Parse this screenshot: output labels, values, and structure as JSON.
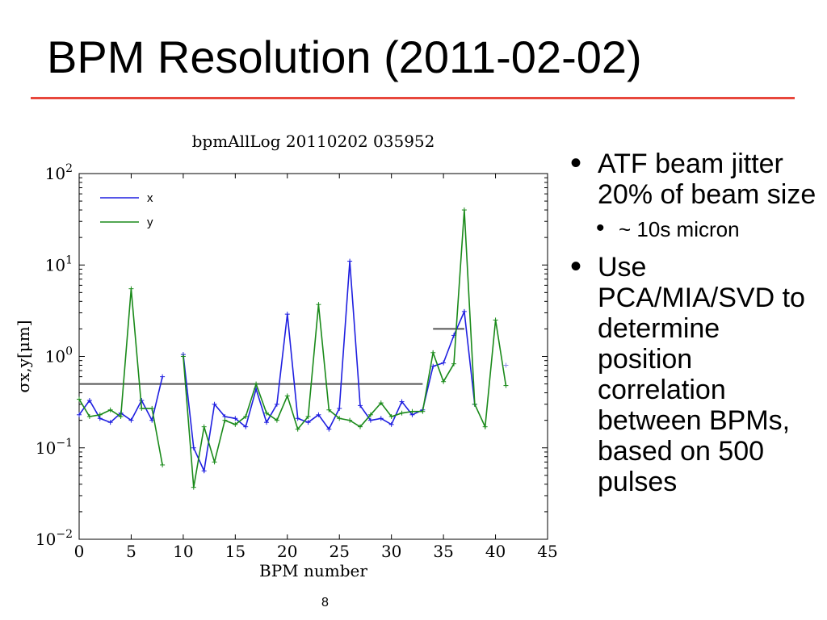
{
  "slide": {
    "title": "BPM Resolution (2011-02-02)",
    "page_number": "8",
    "accent_color": "#e8473c"
  },
  "bullets": [
    {
      "text": "ATF beam jitter 20% of beam size",
      "sub": [
        {
          "text": "~ 10s micron"
        }
      ]
    },
    {
      "text": "Use PCA/MIA/SVD to determine position correlation between BPMs, based on 500 pulses",
      "sub": []
    }
  ],
  "chart_data": {
    "type": "line",
    "title": "bpmAllLog 20110202 035952",
    "xlabel": "BPM number",
    "ylabel": "σx,y[μm]",
    "yscale": "log",
    "xlim": [
      0,
      45
    ],
    "ylim": [
      0.01,
      100
    ],
    "x_ticks": [
      "0",
      "5",
      "10",
      "15",
      "20",
      "25",
      "30",
      "35",
      "40",
      "45"
    ],
    "y_ticks": [
      {
        "base": "10",
        "exp": "−2",
        "value": 0.01
      },
      {
        "base": "10",
        "exp": "−1",
        "value": 0.1
      },
      {
        "base": "10",
        "exp": "0",
        "value": 1
      },
      {
        "base": "10",
        "exp": "1",
        "value": 10
      },
      {
        "base": "10",
        "exp": "2",
        "value": 100
      }
    ],
    "legend_position": "top-left",
    "grid": false,
    "series": [
      {
        "name": "x",
        "color": "#1f1fe0",
        "segments": [
          [
            [
              0,
              0.23
            ],
            [
              1,
              0.33
            ],
            [
              2,
              0.21
            ],
            [
              3,
              0.19
            ],
            [
              4,
              0.24
            ],
            [
              5,
              0.2
            ],
            [
              6,
              0.33
            ],
            [
              7,
              0.2
            ],
            [
              8,
              0.6
            ]
          ],
          [
            [
              10,
              1.05
            ],
            [
              11,
              0.1
            ],
            [
              12,
              0.056
            ],
            [
              13,
              0.3
            ],
            [
              14,
              0.22
            ],
            [
              15,
              0.21
            ],
            [
              16,
              0.17
            ],
            [
              17,
              0.44
            ],
            [
              18,
              0.19
            ],
            [
              19,
              0.3
            ],
            [
              20,
              2.9
            ],
            [
              21,
              0.21
            ],
            [
              22,
              0.19
            ],
            [
              23,
              0.23
            ],
            [
              24,
              0.16
            ],
            [
              25,
              0.27
            ],
            [
              26,
              11
            ],
            [
              27,
              0.29
            ],
            [
              28,
              0.2
            ],
            [
              29,
              0.21
            ],
            [
              30,
              0.18
            ],
            [
              31,
              0.32
            ],
            [
              32,
              0.23
            ],
            [
              33,
              0.26
            ],
            [
              34,
              0.78
            ],
            [
              35,
              0.85
            ],
            [
              36,
              1.7
            ],
            [
              37,
              3.1
            ],
            [
              38,
              0.3
            ]
          ]
        ],
        "markers_only": [
          [
            41,
            0.8
          ]
        ]
      },
      {
        "name": "y",
        "color": "#1a8a1a",
        "segments": [
          [
            [
              0,
              0.34
            ],
            [
              1,
              0.22
            ],
            [
              2,
              0.23
            ],
            [
              3,
              0.26
            ],
            [
              4,
              0.22
            ],
            [
              5,
              5.5
            ],
            [
              6,
              0.27
            ],
            [
              7,
              0.27
            ],
            [
              8,
              0.065
            ]
          ],
          [
            [
              10,
              1.0
            ],
            [
              11,
              0.037
            ],
            [
              12,
              0.17
            ],
            [
              13,
              0.07
            ],
            [
              14,
              0.2
            ],
            [
              15,
              0.18
            ],
            [
              16,
              0.22
            ],
            [
              17,
              0.5
            ],
            [
              18,
              0.24
            ],
            [
              19,
              0.2
            ],
            [
              20,
              0.37
            ],
            [
              21,
              0.16
            ],
            [
              22,
              0.22
            ],
            [
              23,
              3.7
            ],
            [
              24,
              0.26
            ],
            [
              25,
              0.21
            ],
            [
              26,
              0.2
            ],
            [
              27,
              0.17
            ],
            [
              28,
              0.23
            ],
            [
              29,
              0.31
            ],
            [
              30,
              0.22
            ],
            [
              31,
              0.24
            ],
            [
              32,
              0.25
            ],
            [
              33,
              0.25
            ],
            [
              34,
              1.1
            ],
            [
              35,
              0.53
            ],
            [
              36,
              0.83
            ],
            [
              37,
              40
            ],
            [
              38,
              0.3
            ],
            [
              39,
              0.17
            ],
            [
              40,
              2.5
            ],
            [
              41,
              0.48
            ]
          ]
        ],
        "markers_only": []
      }
    ],
    "reference_lines": [
      {
        "x_start": 0,
        "x_end": 33,
        "y": 0.5,
        "color": "#555555"
      },
      {
        "x_start": 34,
        "x_end": 37,
        "y": 2.0,
        "color": "#555555"
      }
    ]
  }
}
